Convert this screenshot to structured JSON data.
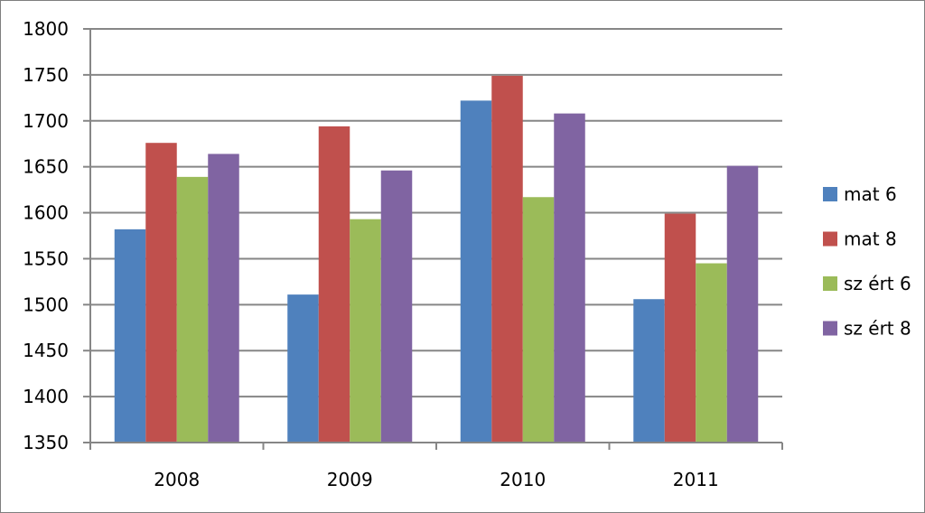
{
  "chart_data": {
    "type": "bar",
    "categories": [
      "2008",
      "2009",
      "2010",
      "2011"
    ],
    "series": [
      {
        "name": "mat 6",
        "color": "#4f81bd",
        "values": [
          1582,
          1511,
          1722,
          1506
        ]
      },
      {
        "name": "mat 8",
        "color": "#c0504d",
        "values": [
          1676,
          1694,
          1749,
          1599
        ]
      },
      {
        "name": "sz ért 6",
        "color": "#9bbb59",
        "values": [
          1639,
          1593,
          1617,
          1545
        ]
      },
      {
        "name": "sz ért 8",
        "color": "#8064a2",
        "values": [
          1664,
          1646,
          1708,
          1651
        ]
      }
    ],
    "ylim": [
      1350,
      1800
    ],
    "yticks": [
      "1350",
      "1400",
      "1450",
      "1500",
      "1550",
      "1600",
      "1650",
      "1700",
      "1750",
      "1800"
    ],
    "grid": true,
    "legend": "right",
    "title": "",
    "xlabel": "",
    "ylabel": ""
  }
}
